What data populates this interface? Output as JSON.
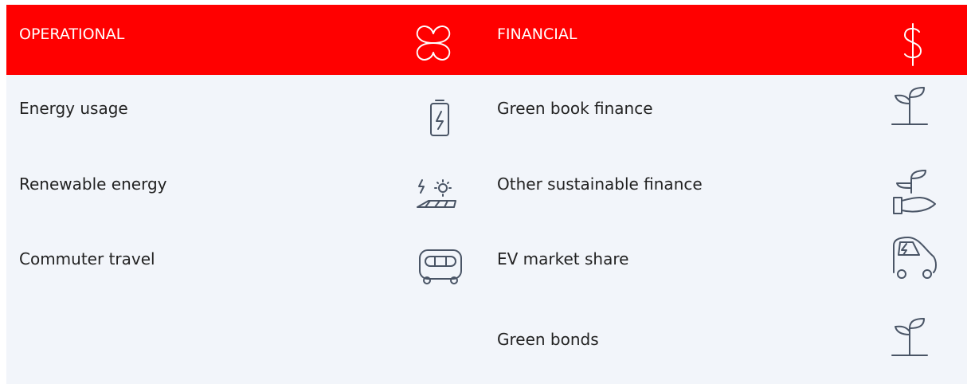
{
  "columns": [
    {
      "title": "OPERATIONAL",
      "items": [
        "Energy usage",
        "Renewable energy",
        "Commuter travel"
      ]
    },
    {
      "title": "FINANCIAL",
      "items": [
        "Green book finance",
        "Other sustainable finance",
        "EV market share",
        "Green bonds"
      ]
    }
  ]
}
